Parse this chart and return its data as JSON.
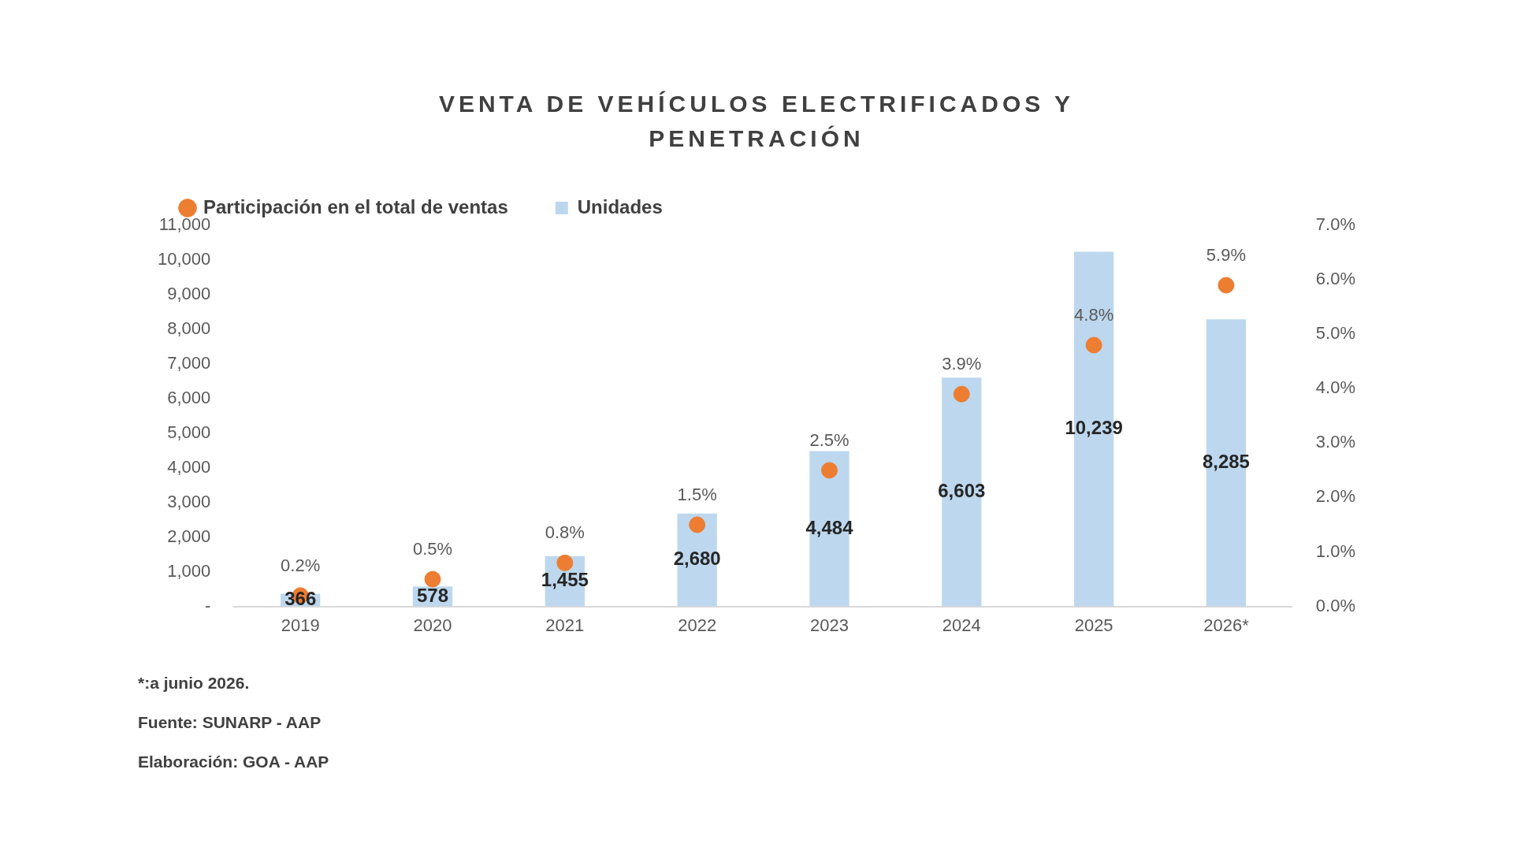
{
  "chart_data": {
    "type": "bar",
    "title": "VENTA DE VEHÍCULOS ELECTRIFICADOS Y PENETRACIÓN",
    "categories": [
      "2019",
      "2020",
      "2021",
      "2022",
      "2023",
      "2024",
      "2025",
      "2026*"
    ],
    "series": [
      {
        "name": "Unidades",
        "color": "#bdd7ee",
        "values": [
          366,
          578,
          1455,
          2680,
          4484,
          6603,
          10239,
          8285
        ],
        "value_labels": [
          "366",
          "578",
          "1,455",
          "2,680",
          "4,484",
          "6,603",
          "10,239",
          "8,285"
        ]
      },
      {
        "name": "Participación en el total de ventas",
        "type": "scatter",
        "axis": "y2",
        "color": "#ed7d31",
        "values": [
          0.2,
          0.5,
          0.8,
          1.5,
          2.5,
          3.9,
          4.8,
          5.9
        ],
        "value_labels": [
          "0.2%",
          "0.5%",
          "0.8%",
          "1.5%",
          "2.5%",
          "3.9%",
          "4.8%",
          "5.9%"
        ]
      }
    ],
    "ylim": [
      0,
      11000
    ],
    "yticks": [
      {
        "value": 0,
        "label": "-"
      },
      {
        "value": 1000,
        "label": "1,000"
      },
      {
        "value": 2000,
        "label": "2,000"
      },
      {
        "value": 3000,
        "label": "3,000"
      },
      {
        "value": 4000,
        "label": "4,000"
      },
      {
        "value": 5000,
        "label": "5,000"
      },
      {
        "value": 6000,
        "label": "6,000"
      },
      {
        "value": 7000,
        "label": "7,000"
      },
      {
        "value": 8000,
        "label": "8,000"
      },
      {
        "value": 9000,
        "label": "9,000"
      },
      {
        "value": 10000,
        "label": "10,000"
      },
      {
        "value": 11000,
        "label": "11,000"
      }
    ],
    "y2lim": [
      0,
      7
    ],
    "y2ticks": [
      {
        "value": 0,
        "label": "0.0%"
      },
      {
        "value": 1,
        "label": "1.0%"
      },
      {
        "value": 2,
        "label": "2.0%"
      },
      {
        "value": 3,
        "label": "3.0%"
      },
      {
        "value": 4,
        "label": "4.0%"
      },
      {
        "value": 5,
        "label": "5.0%"
      },
      {
        "value": 6,
        "label": "6.0%"
      },
      {
        "value": 7,
        "label": "7.0%"
      }
    ],
    "marker": "circle",
    "grid": false,
    "legend": "top left",
    "annotations": [
      "*:a junio 2026.",
      "Fuente: SUNARP - AAP",
      "Elaboración: GOA - AAP"
    ]
  }
}
